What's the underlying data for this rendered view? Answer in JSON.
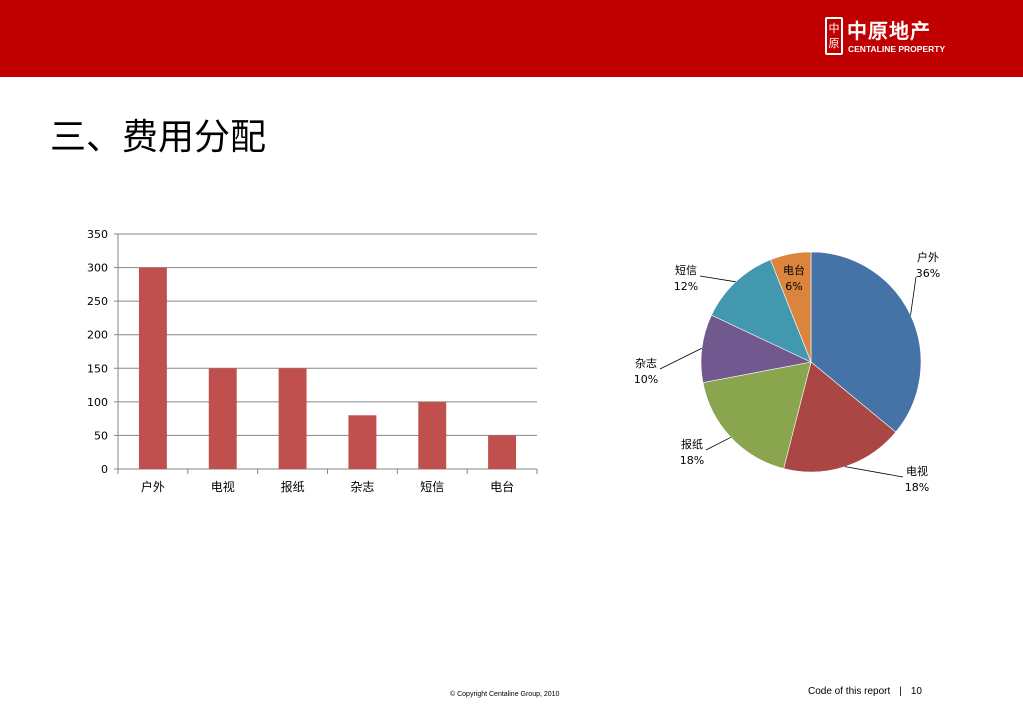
{
  "header": {
    "bar_color": "#c00000",
    "logo": {
      "seal_chars": [
        "中",
        "原"
      ],
      "name_cn": "中原地产",
      "name_en": "CENTALINE PROPERTY"
    }
  },
  "title": "三、费用分配",
  "chart_data": [
    {
      "type": "bar",
      "title": "",
      "categories": [
        "户外",
        "电视",
        "报纸",
        "杂志",
        "短信",
        "电台"
      ],
      "values": [
        300,
        150,
        150,
        80,
        100,
        50
      ],
      "ylim": [
        0,
        350
      ],
      "yticks": [
        0,
        50,
        100,
        150,
        200,
        250,
        300,
        350
      ],
      "grid": true,
      "legend": "none",
      "bar_color": "#c0504d"
    },
    {
      "type": "pie",
      "title": "",
      "labels": [
        "户外",
        "电视",
        "报纸",
        "杂志",
        "短信",
        "电台"
      ],
      "values": [
        36,
        18,
        18,
        10,
        12,
        6
      ],
      "value_labels": [
        "36%",
        "18%",
        "18%",
        "10%",
        "12%",
        "6%"
      ],
      "colors": [
        "#4572a7",
        "#aa4643",
        "#89a54e",
        "#71588f",
        "#4198af",
        "#db843d"
      ],
      "legend": "none"
    }
  ],
  "footer": {
    "copyright": "© Copyright  Centaline Group, 2010",
    "report_code": "Code of this report",
    "separator": "|",
    "page_number": "10"
  }
}
